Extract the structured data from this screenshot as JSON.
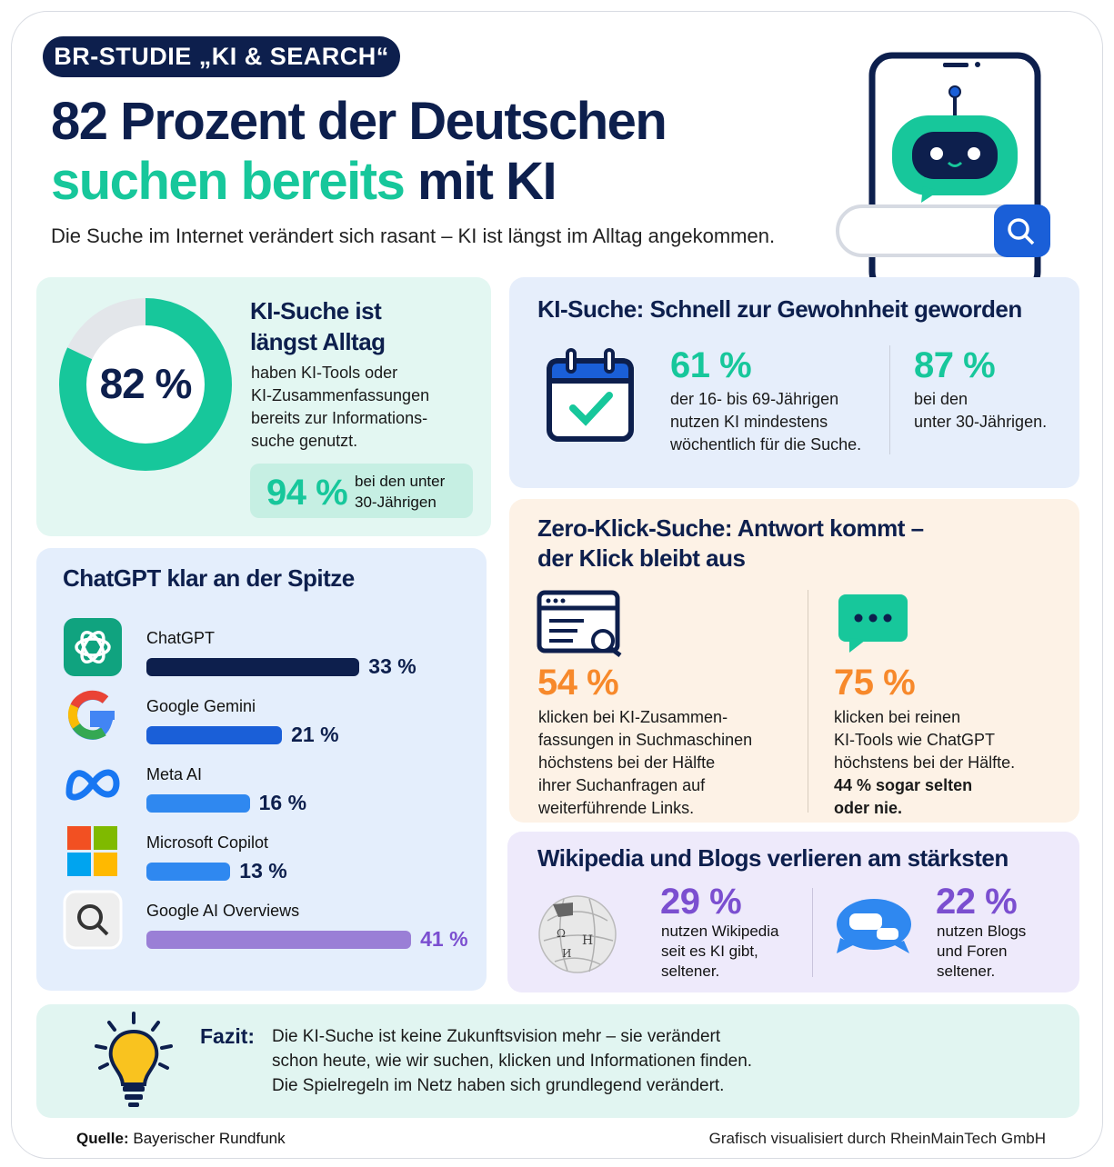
{
  "header": {
    "badge": "BR-STUDIE „KI & SEARCH“",
    "title_line1": "82 Prozent der Deutschen",
    "title_line2_accent": "suchen bereits",
    "title_line2_rest": "mit KI",
    "subtitle": "Die Suche im Internet verändert sich rasant – KI ist längst im Alltag angekommen."
  },
  "alltag": {
    "donut_value": "82 %",
    "donut_fraction": 0.82,
    "title_l1": "KI-Suche ist",
    "title_l2": "längst Alltag",
    "text": [
      "haben KI-Tools oder",
      "KI-Zusammenfassungen",
      "bereits zur Informations-",
      "suche genutzt."
    ],
    "highlight_value": "94 %",
    "highlight_text": [
      "bei den unter",
      "30-Jährigen"
    ]
  },
  "gewohnheit": {
    "title": "KI-Suche: Schnell zur Gewohnheit geworden",
    "stat1": {
      "value": "61 %",
      "text": [
        "der 16- bis 69-Jährigen",
        "nutzen KI mindestens",
        "wöchentlich für die Suche."
      ]
    },
    "stat2": {
      "value": "87 %",
      "text": [
        "bei den",
        "unter 30-Jährigen."
      ]
    }
  },
  "chatgpt": {
    "title": "ChatGPT klar an der Spitze"
  },
  "chart_data": {
    "type": "bar",
    "orientation": "horizontal",
    "categories": [
      "ChatGPT",
      "Google Gemini",
      "Meta AI",
      "Microsoft Copilot",
      "Google AI Overviews"
    ],
    "values": [
      33,
      21,
      16,
      13,
      41
    ],
    "labels": [
      "33 %",
      "21 %",
      "16 %",
      "13 %",
      "41 %"
    ],
    "colors": [
      "#0d1f4d",
      "#1a5fd8",
      "#2f88f0",
      "#2f88f0",
      "#9a7fd6"
    ]
  },
  "zeroklick": {
    "title_l1": "Zero-Klick-Suche: Antwort kommt –",
    "title_l2": "der Klick bleibt aus",
    "stat1": {
      "value": "54 %",
      "text": [
        "klicken bei KI-Zusammen-",
        "fassungen in Suchmaschinen",
        "höchstens bei der Hälfte",
        "ihrer Suchanfragen auf",
        "weiterführende Links."
      ]
    },
    "stat2": {
      "value": "75 %",
      "text": [
        "klicken bei reinen",
        "KI-Tools wie ChatGPT",
        "höchstens bei der Hälfte."
      ],
      "bold_text": [
        "44 % sogar selten",
        "oder nie."
      ]
    }
  },
  "verlierer": {
    "title": "Wikipedia und Blogs verlieren am stärksten",
    "stat1": {
      "value": "29 %",
      "text": [
        "nutzen Wikipedia",
        "seit es KI gibt,",
        "seltener."
      ]
    },
    "stat2": {
      "value": "22 %",
      "text": [
        "nutzen Blogs",
        "und Foren",
        "seltener."
      ]
    }
  },
  "fazit": {
    "label": "Fazit:",
    "text": [
      "Die KI-Suche ist keine Zukunftsvision mehr – sie verändert",
      "schon heute, wie wir suchen, klicken und Informationen finden.",
      "Die Spielregeln im Netz haben sich grundlegend verändert."
    ]
  },
  "footer": {
    "source_label": "Quelle:",
    "source": "Bayerischer Rundfunk",
    "credit": "Grafisch visualisiert durch RheinMainTech GmbH"
  },
  "colors": {
    "navy": "#0d1f4d",
    "teal": "#17c79b",
    "orange": "#f7892b",
    "purple": "#7b4fd0"
  }
}
